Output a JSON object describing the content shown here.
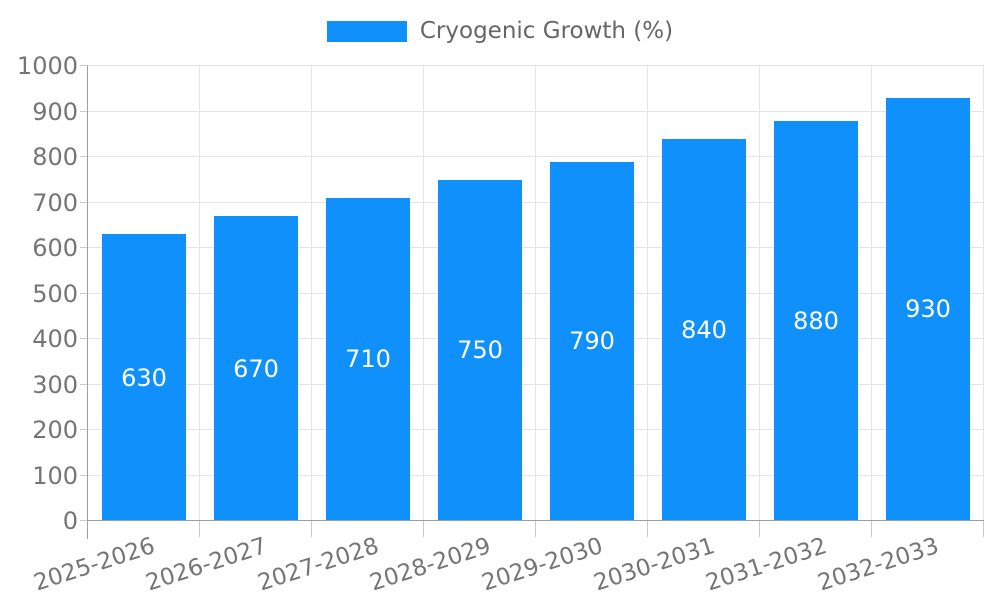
{
  "chart_data": {
    "type": "bar",
    "title": "",
    "legend": {
      "label": "Cryogenic Growth (%)",
      "position": "top"
    },
    "categories": [
      "2025-2026",
      "2026-2027",
      "2027-2028",
      "2028-2029",
      "2029-2030",
      "2030-2031",
      "2031-2032",
      "2032-2033"
    ],
    "values": [
      630,
      670,
      710,
      750,
      790,
      840,
      880,
      930
    ],
    "value_labels_visible": true,
    "xlabel": "",
    "ylabel": "",
    "ylim": [
      0,
      1000
    ],
    "yticks": [
      0,
      100,
      200,
      300,
      400,
      500,
      600,
      700,
      800,
      900,
      1000
    ],
    "grid": true,
    "x_label_rotation_deg": -18,
    "colors": {
      "bar": "#1090fb",
      "grid": "#e5e5e5",
      "axis": "#9e9e9e",
      "tick": "#c9c9c9",
      "axis_text": "#757575",
      "legend_text": "#666666",
      "value_text": "#ffffff",
      "background": "#ffffff"
    }
  }
}
